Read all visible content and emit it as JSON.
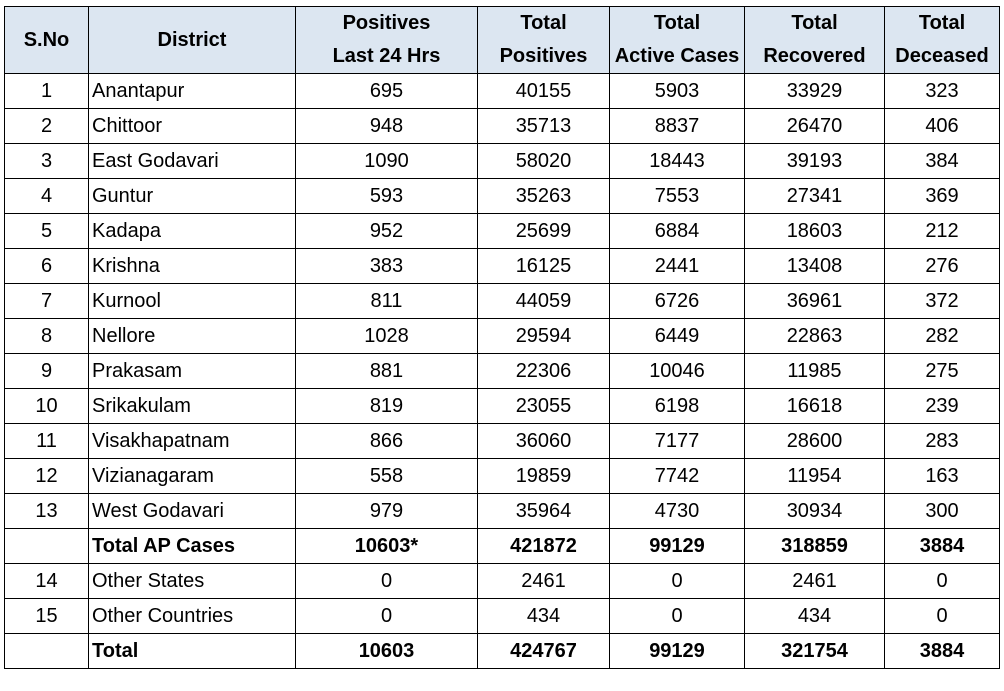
{
  "headers": {
    "sno": "S.No",
    "district": "District",
    "positives_24h": [
      "Positives",
      "Last 24 Hrs"
    ],
    "total_positives": [
      "Total",
      "Positives"
    ],
    "total_active": [
      "Total",
      "Active Cases"
    ],
    "total_recovered": [
      "Total",
      "Recovered"
    ],
    "total_deceased": [
      "Total",
      "Deceased"
    ]
  },
  "rows": [
    {
      "sno": "1",
      "district": "Anantapur",
      "positives_24h": "695",
      "total_positives": "40155",
      "active": "5903",
      "recovered": "33929",
      "deceased": "323"
    },
    {
      "sno": "2",
      "district": "Chittoor",
      "positives_24h": "948",
      "total_positives": "35713",
      "active": "8837",
      "recovered": "26470",
      "deceased": "406"
    },
    {
      "sno": "3",
      "district": "East Godavari",
      "positives_24h": "1090",
      "total_positives": "58020",
      "active": "18443",
      "recovered": "39193",
      "deceased": "384"
    },
    {
      "sno": "4",
      "district": "Guntur",
      "positives_24h": "593",
      "total_positives": "35263",
      "active": "7553",
      "recovered": "27341",
      "deceased": "369"
    },
    {
      "sno": "5",
      "district": "Kadapa",
      "positives_24h": "952",
      "total_positives": "25699",
      "active": "6884",
      "recovered": "18603",
      "deceased": "212"
    },
    {
      "sno": "6",
      "district": "Krishna",
      "positives_24h": "383",
      "total_positives": "16125",
      "active": "2441",
      "recovered": "13408",
      "deceased": "276"
    },
    {
      "sno": "7",
      "district": "Kurnool",
      "positives_24h": "811",
      "total_positives": "44059",
      "active": "6726",
      "recovered": "36961",
      "deceased": "372"
    },
    {
      "sno": "8",
      "district": "Nellore",
      "positives_24h": "1028",
      "total_positives": "29594",
      "active": "6449",
      "recovered": "22863",
      "deceased": "282"
    },
    {
      "sno": "9",
      "district": "Prakasam",
      "positives_24h": "881",
      "total_positives": "22306",
      "active": "10046",
      "recovered": "11985",
      "deceased": "275"
    },
    {
      "sno": "10",
      "district": "Srikakulam",
      "positives_24h": "819",
      "total_positives": "23055",
      "active": "6198",
      "recovered": "16618",
      "deceased": "239"
    },
    {
      "sno": "11",
      "district": "Visakhapatnam",
      "positives_24h": "866",
      "total_positives": "36060",
      "active": "7177",
      "recovered": "28600",
      "deceased": "283"
    },
    {
      "sno": "12",
      "district": "Vizianagaram",
      "positives_24h": "558",
      "total_positives": "19859",
      "active": "7742",
      "recovered": "11954",
      "deceased": "163"
    },
    {
      "sno": "13",
      "district": "West Godavari",
      "positives_24h": "979",
      "total_positives": "35964",
      "active": "4730",
      "recovered": "30934",
      "deceased": "300"
    },
    {
      "sno": "",
      "district": "Total AP Cases",
      "positives_24h": "10603*",
      "total_positives": "421872",
      "active": "99129",
      "recovered": "318859",
      "deceased": "3884",
      "bold": true
    },
    {
      "sno": "14",
      "district": "Other States",
      "positives_24h": "0",
      "total_positives": "2461",
      "active": "0",
      "recovered": "2461",
      "deceased": "0"
    },
    {
      "sno": "15",
      "district": "Other Countries",
      "positives_24h": "0",
      "total_positives": "434",
      "active": "0",
      "recovered": "434",
      "deceased": "0"
    },
    {
      "sno": "",
      "district": "Total",
      "positives_24h": "10603",
      "total_positives": "424767",
      "active": "99129",
      "recovered": "321754",
      "deceased": "3884",
      "bold": true
    }
  ],
  "colors": {
    "header_bg": "#dce6f1",
    "border": "#000000"
  }
}
